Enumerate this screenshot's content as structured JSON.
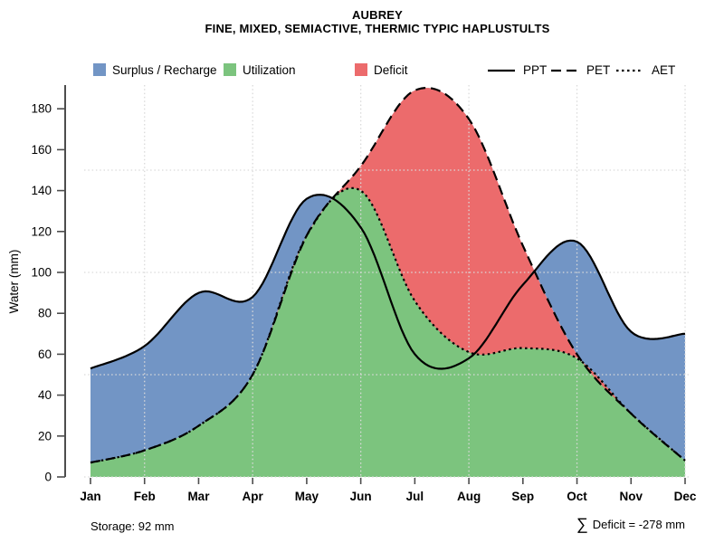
{
  "title": "AUBREY",
  "subtitle": "FINE, MIXED, SEMIACTIVE, THERMIC TYPIC HAPLUSTULTS",
  "legend": {
    "fills": [
      {
        "label": "Surplus / Recharge",
        "color": "#7295C5"
      },
      {
        "label": "Utilization",
        "color": "#7CC47E"
      },
      {
        "label": "Deficit",
        "color": "#EC6B6C"
      }
    ],
    "lines": [
      {
        "label": "PPT",
        "style": "solid"
      },
      {
        "label": "PET",
        "style": "dashed"
      },
      {
        "label": "AET",
        "style": "dotted"
      }
    ]
  },
  "annotations": {
    "storage": "Storage: 92 mm",
    "sigma": "∑",
    "deficit": "Deficit = -278 mm"
  },
  "chart_data": {
    "type": "area",
    "title": "AUBREY",
    "subtitle": "FINE, MIXED, SEMIACTIVE, THERMIC TYPIC HAPLUSTULTS",
    "x": [
      "Jan",
      "Feb",
      "Mar",
      "Apr",
      "May",
      "Jun",
      "Jul",
      "Aug",
      "Sep",
      "Oct",
      "Nov",
      "Dec"
    ],
    "series": [
      {
        "name": "PPT",
        "line": "solid",
        "values": [
          53,
          64,
          90,
          88,
          136,
          122,
          60,
          58,
          94,
          115,
          71,
          70
        ]
      },
      {
        "name": "PET",
        "line": "dashed",
        "values": [
          7,
          13,
          25,
          50,
          118,
          152,
          189,
          175,
          113,
          60,
          31,
          8
        ]
      },
      {
        "name": "AET",
        "line": "dotted",
        "values": [
          7,
          13,
          25,
          50,
          118,
          140,
          86,
          61,
          63,
          58,
          31,
          8
        ]
      }
    ],
    "fill_regions": [
      {
        "name": "Surplus / Recharge",
        "between": "PET-to-PPT where PPT > PET",
        "color": "#7295C5"
      },
      {
        "name": "Utilization",
        "between": "0-to-AET",
        "color": "#7CC47E"
      },
      {
        "name": "Deficit",
        "between": "AET-to-PET where PET > AET",
        "color": "#EC6B6C"
      }
    ],
    "ylabel": "Water (mm)",
    "ylim": [
      0,
      190
    ],
    "yticks": [
      0,
      20,
      40,
      60,
      80,
      100,
      120,
      140,
      160,
      180
    ],
    "grid": {
      "style": "dotted light gray, drawn over fills",
      "y_values": [
        0,
        50,
        100,
        150
      ],
      "x_months": [
        "Feb",
        "Apr",
        "Jun",
        "Aug",
        "Oct",
        "Dec"
      ]
    },
    "storage_mm": 92,
    "deficit_sum_mm": -278
  },
  "colors": {
    "surplus": "#7295C5",
    "utilization": "#7CC47E",
    "deficit": "#EC6B6C",
    "curve": "#000000",
    "axis": "#4D4D4D",
    "grid": "#DADADA",
    "background": "#FFFFFF"
  }
}
